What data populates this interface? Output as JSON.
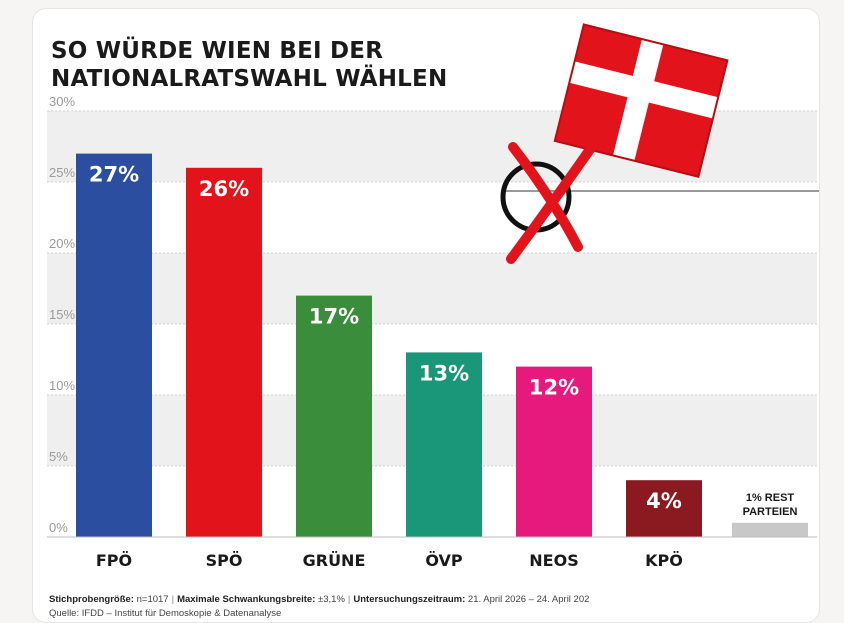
{
  "title_lines": [
    "SO WÜRDE WIEN BEI DER",
    "NATIONALRATSWAHL WÄHLEN"
  ],
  "chart_data": {
    "type": "bar",
    "title": "SO WÜRDE WIEN BEI DER NATIONALRATSWAHL WÄHLEN",
    "categories": [
      "FPÖ",
      "SPÖ",
      "GRÜNE",
      "ÖVP",
      "NEOS",
      "KPÖ"
    ],
    "values": [
      27,
      26,
      17,
      13,
      12,
      4
    ],
    "data_labels": [
      "27%",
      "26%",
      "17%",
      "13%",
      "12%",
      "4%"
    ],
    "colors": [
      "#2b4ea0",
      "#e3131b",
      "#3a8d3a",
      "#1a9678",
      "#e6197d",
      "#8a1a20"
    ],
    "rest": {
      "label_line1": "1% REST",
      "label_line2": "PARTEIEN",
      "value": 1,
      "color": "#c8c8c8"
    },
    "ylim": [
      0,
      30
    ],
    "yticks": [
      0,
      5,
      10,
      15,
      20,
      25,
      30
    ],
    "ytick_labels": [
      "0%",
      "5%",
      "10%",
      "15%",
      "20%",
      "25%",
      "30%"
    ],
    "grid": true,
    "xlabel": "",
    "ylabel": ""
  },
  "footer": {
    "sample_label": "Stichprobengröße:",
    "sample_value": "n=1017",
    "margin_label": "Maximale Schwankungsbreite:",
    "margin_value": "±3,1%",
    "period_label": "Untersuchungszeitraum:",
    "period_value": "21. April 2026 – 24. April 202",
    "source": "Quelle: IFDD – Institut für Demoskopie & Datenanalyse"
  },
  "colors": {
    "band": "#efefef",
    "grid": "#d2d2d2",
    "tick_text": "#9a9a9a",
    "label_text": "#1a1a1a",
    "ballot_red": "#e3131b"
  },
  "icons": [
    "ballot-paper-icon",
    "ballot-cross-mark-icon"
  ]
}
